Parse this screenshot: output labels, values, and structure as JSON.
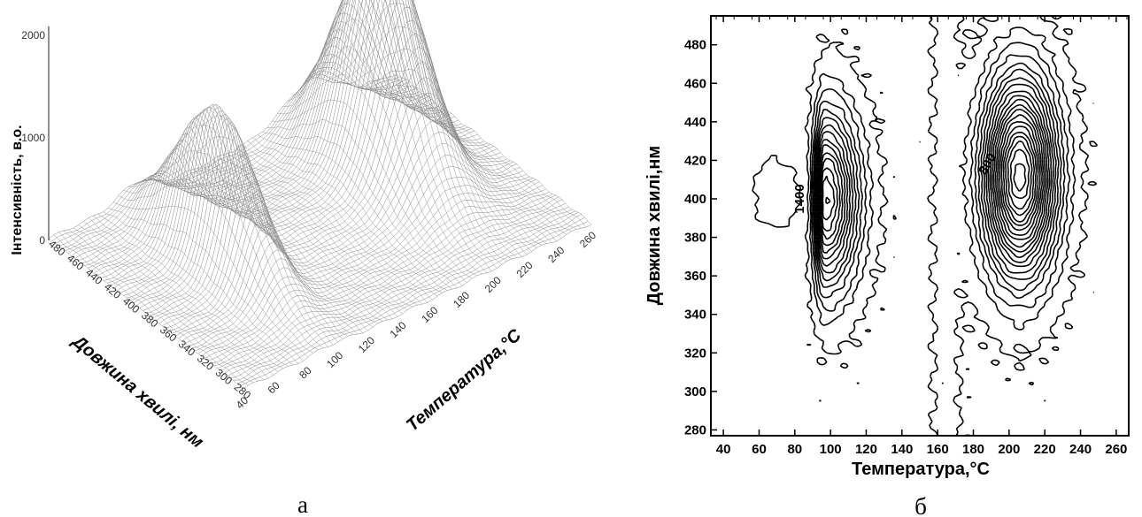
{
  "figure": {
    "panel_a_caption": "a",
    "panel_b_caption": "б"
  },
  "chart_data": [
    {
      "type": "surface",
      "panel": "a",
      "title": "",
      "xlabel": "Температура,°C",
      "ylabel": "Довжина хвилі, нм",
      "zlabel": "Інтенсивність, в.о.",
      "x_ticks": [
        "40",
        "60",
        "80",
        "100",
        "120",
        "140",
        "160",
        "180",
        "200",
        "220",
        "240",
        "260"
      ],
      "y_ticks": [
        "280",
        "300",
        "320",
        "340",
        "360",
        "380",
        "400",
        "420",
        "440",
        "460",
        "480"
      ],
      "z_ticks": [
        "0",
        "1000",
        "2000"
      ],
      "xlim": [
        40,
        260
      ],
      "ylim": [
        280,
        490
      ],
      "zlim": [
        0,
        2200
      ],
      "peaks": [
        {
          "temperature": 95,
          "wavelength": 400,
          "intensity": 1450
        },
        {
          "temperature": 205,
          "wavelength": 412,
          "intensity": 2200
        }
      ],
      "grid": true
    },
    {
      "type": "contour",
      "panel": "б",
      "title": "",
      "xlabel": "Температура,°C",
      "ylabel": "Довжина хвилі,нм",
      "x_ticks": [
        "40",
        "60",
        "80",
        "100",
        "120",
        "140",
        "160",
        "180",
        "200",
        "220",
        "240",
        "260"
      ],
      "y_ticks": [
        "280",
        "300",
        "320",
        "340",
        "360",
        "380",
        "400",
        "420",
        "440",
        "460",
        "480"
      ],
      "xlim": [
        33,
        267
      ],
      "ylim": [
        277,
        495
      ],
      "peaks": [
        {
          "temperature": 97,
          "wavelength": 400,
          "intensity": 1450
        },
        {
          "temperature": 206,
          "wavelength": 412,
          "intensity": 2100
        }
      ],
      "contour_labels": [
        {
          "text": "800",
          "temperature": 190,
          "wavelength": 417
        },
        {
          "text": "1400",
          "temperature": 85,
          "wavelength": 400
        }
      ]
    }
  ]
}
